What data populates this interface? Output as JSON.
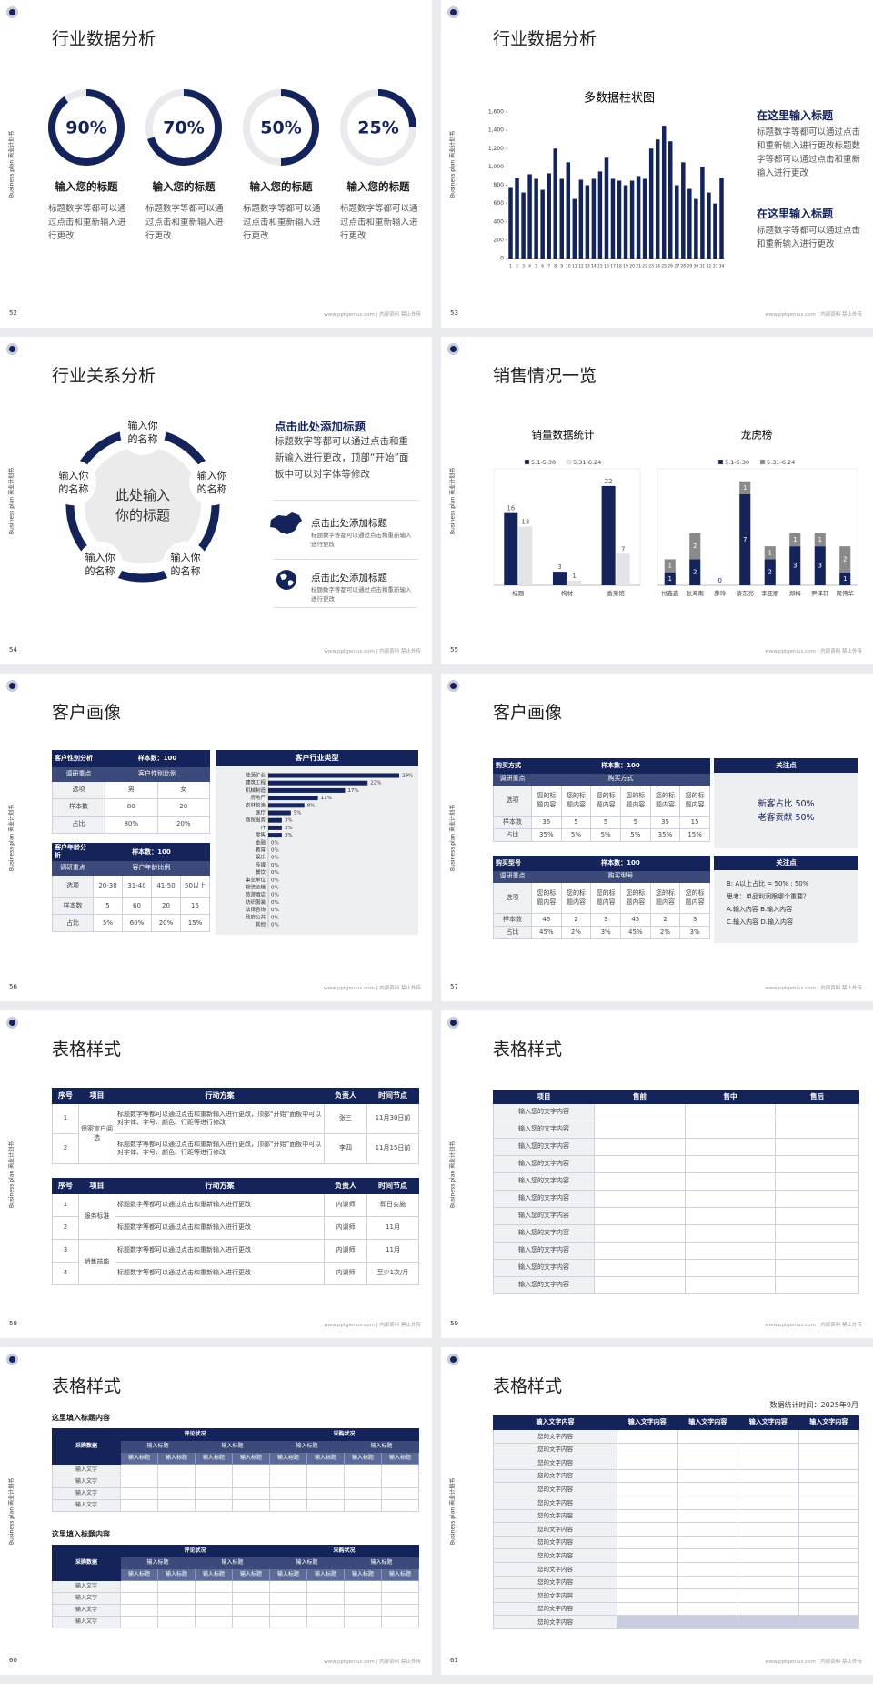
{
  "side_text": "Business plan 商业计划书",
  "footer": "www.pptgenius.com | 内部资料 禁止外传",
  "slides": [
    {
      "page": "52",
      "title": "行业数据分析",
      "rings": [
        {
          "value": 90,
          "value_label": "90%",
          "heading": "输入您的标题",
          "text": "标题数字等都可以通过点击和重新输入进行更改"
        },
        {
          "value": 70,
          "value_label": "70%",
          "heading": "输入您的标题",
          "text": "标题数字等都可以通过点击和重新输入进行更改"
        },
        {
          "value": 50,
          "value_label": "50%",
          "heading": "输入您的标题",
          "text": "标题数字等都可以通过点击和重新输入进行更改"
        },
        {
          "value": 25,
          "value_label": "25%",
          "heading": "输入您的标题",
          "text": "标题数字等都可以通过点击和重新输入进行更改"
        }
      ]
    },
    {
      "page": "53",
      "title": "行业数据分析",
      "chart": {
        "type": "bar",
        "title": "多数据柱状图",
        "categories": [
          "1",
          "2",
          "3",
          "4",
          "5",
          "6",
          "7",
          "8",
          "9",
          "10",
          "11",
          "12",
          "13",
          "14",
          "15",
          "16",
          "17",
          "18",
          "19",
          "20",
          "21",
          "22",
          "23",
          "24",
          "25",
          "26",
          "27",
          "28",
          "29",
          "30",
          "31",
          "32",
          "33",
          "34"
        ],
        "values": [
          780,
          880,
          720,
          920,
          870,
          750,
          930,
          1200,
          870,
          1050,
          650,
          860,
          800,
          870,
          950,
          1100,
          870,
          850,
          800,
          850,
          900,
          870,
          1200,
          1300,
          1450,
          1280,
          800,
          1050,
          760,
          650,
          1000,
          720,
          600,
          880
        ],
        "color": "#14245a",
        "ylim": [
          0,
          1600
        ],
        "yticks": [
          0,
          200,
          400,
          600,
          800,
          {
            "value": 1000,
            "label": "1,000"
          },
          {
            "value": 1200,
            "label": "1,200"
          },
          {
            "value": 1400,
            "label": "1,400"
          },
          {
            "value": 1600,
            "label": "1,600"
          }
        ]
      },
      "notes": [
        {
          "heading": "在这里输入标题",
          "text": "标题数字等都可以通过点击和重新输入进行更改标题数字等都可以通过点击和重新输入进行更改"
        },
        {
          "heading": "在这里输入标题",
          "text": "标题数字等都可以通过点击和重新输入进行更改"
        }
      ]
    },
    {
      "page": "54",
      "title": "行业关系分析",
      "center": "此处输入你的标题",
      "nodes": [
        "输入你的名称",
        "输入你的名称",
        "输入你的名称",
        "输入你的名称",
        "输入你的名称"
      ],
      "heading": "点击此处添加标题",
      "text": "标题数字等都可以通过点击和重新输入进行更改，顶部“开始”面板中可以对字体等修改",
      "items": [
        {
          "heading": "点击此处添加标题",
          "text": "标题数字等都可以通过点击和重新输入进行更改"
        },
        {
          "heading": "点击此处添加标题",
          "text": "标题数字等都可以通过点击和重新输入进行更改"
        }
      ]
    },
    {
      "page": "55",
      "title": "销售情况一览",
      "charts": [
        {
          "type": "bar",
          "title": "销量数据统计",
          "categories": [
            "标题",
            "构材",
            "香菜馆"
          ],
          "series": [
            {
              "name": "5.1-5.30",
              "color": "#14245a",
              "values": [
                16,
                3,
                22
              ]
            },
            {
              "name": "5.31-6.24",
              "color": "#e3e4e8",
              "values": [
                13,
                1,
                7
              ]
            }
          ]
        },
        {
          "type": "stacked_bar",
          "title": "龙虎榜",
          "categories": [
            "付鑫鑫",
            "张海南",
            "薛玲",
            "蔡东亮",
            "李亚丽",
            "郑梅",
            "尹泽轩",
            "周伟华"
          ],
          "series": [
            {
              "name": "5.1-5.30",
              "color": "#14245a",
              "values": [
                1,
                2,
                0,
                7,
                2,
                3,
                3,
                1
              ]
            },
            {
              "name": "5.31-6.24",
              "color": "#8a8a8a",
              "values": [
                1,
                2,
                null,
                1,
                1,
                1,
                1,
                2
              ]
            }
          ]
        }
      ]
    },
    {
      "page": "56",
      "title": "客户画像",
      "tables": [
        {
          "header": [
            "客户性别分析",
            "样本数：100"
          ],
          "subheader": [
            "调研重点",
            "客户性别比例"
          ],
          "rows": [
            [
              "选项",
              "男",
              "女"
            ],
            [
              "样本数",
              "80",
              "20"
            ],
            [
              "占比",
              "80%",
              "20%"
            ]
          ]
        },
        {
          "header": [
            "客户年龄分析",
            "样本数：100"
          ],
          "subheader": [
            "调研重点",
            "客户年龄比例"
          ],
          "rows": [
            [
              "选项",
              "20-30",
              "31-40",
              "41-50",
              "50以上"
            ],
            [
              "样本数",
              "5",
              "60",
              "20",
              "15"
            ],
            [
              "占比",
              "5%",
              "60%",
              "20%",
              "15%"
            ]
          ]
        }
      ],
      "chart": {
        "type": "hbar",
        "title": "客户行业类型",
        "categories": [
          "能源矿业",
          "建筑工程",
          "机械制造",
          "房地产",
          "农林牧渔",
          "医疗",
          "商贸服务",
          "IT",
          "零售",
          "金融",
          "教育",
          "娱乐",
          "传媒",
          "餐饮",
          "事业单位",
          "物流运输",
          "旅游酒店",
          "纺织服装",
          "法律咨询",
          "政府公共",
          "其他"
        ],
        "values": [
          29,
          22,
          17,
          11,
          8,
          5,
          3,
          3,
          3,
          0,
          0,
          0,
          0,
          0,
          0,
          0,
          0,
          0,
          0,
          0,
          0
        ],
        "value_labels": [
          "29%",
          "22%",
          "17%",
          "11%",
          "8%",
          "5%",
          "3%",
          "3%",
          "3%",
          "0%",
          "0%",
          "0%",
          "0%",
          "0%",
          "0%",
          "0%",
          "0%",
          "0%",
          "0%",
          "0%",
          "0%"
        ],
        "color": "#14245a"
      }
    },
    {
      "page": "57",
      "title": "客户画像",
      "tables": [
        {
          "header": [
            "购买方式",
            "样本数：100"
          ],
          "subheader": [
            "调研重点",
            "购买方式"
          ],
          "rows": [
            [
              "选项",
              "您的标题内容",
              "您的标题内容",
              "您的标题内容",
              "您的标题内容",
              "您的标题内容",
              "您的标题内容"
            ],
            [
              "样本数",
              "35",
              "5",
              "5",
              "5",
              "35",
              "15"
            ],
            [
              "占比",
              "35%",
              "5%",
              "5%",
              "5%",
              "35%",
              "15%"
            ]
          ]
        },
        {
          "header": [
            "购买型号",
            "样本数：100"
          ],
          "subheader": [
            "调研重点",
            "购买型号"
          ],
          "rows": [
            [
              "选项",
              "您的标题内容",
              "您的标题内容",
              "您的标题内容",
              "您的标题内容",
              "您的标题内容",
              "您的标题内容"
            ],
            [
              "样本数",
              "45",
              "2",
              "3",
              "45",
              "2",
              "3"
            ],
            [
              "占比",
              "45%",
              "2%",
              "3%",
              "45%",
              "2%",
              "3%"
            ]
          ]
        }
      ],
      "panels": [
        {
          "title": "关注点",
          "lines": [
            "新客占比 50%",
            "老客贡献 50%"
          ]
        },
        {
          "title": "关注点",
          "lines": [
            "B: A以上占比 = 50% : 50%",
            "思考：单品利润跟哪个重要？",
            "A.输入内容  B.输入内容",
            "C.输入内容  D.输入内容"
          ]
        }
      ]
    },
    {
      "page": "58",
      "title": "表格样式",
      "tables": [
        {
          "header": [
            "序号",
            "项目",
            "行动方案",
            "负责人",
            "时间节点"
          ],
          "groups": [
            {
              "item": "保密宣户阅选",
              "rows": [
                [
                  "1",
                  "标题数字等都可以通过点击和重新输入进行更改，顶部“开始”面板中可以对字体、字号、颜色、行距等进行修改",
                  "张三",
                  "11月30日前"
                ],
                [
                  "2",
                  "标题数字等都可以通过点击和重新输入进行更改，顶部“开始”面板中可以对字体、字号、颜色、行距等进行修改",
                  "李四",
                  "11月15日前"
                ]
              ]
            }
          ]
        },
        {
          "header": [
            "序号",
            "项目",
            "行动方案",
            "负责人",
            "时间节点"
          ],
          "groups": [
            {
              "item": "服务标准",
              "rows": [
                [
                  "1",
                  "标题数字等都可以通过点击和重新输入进行更改",
                  "内训师",
                  "即日实施"
                ],
                [
                  "2",
                  "标题数字等都可以通过点击和重新输入进行更改",
                  "内训师",
                  "11月"
                ]
              ]
            },
            {
              "item": "销售技能",
              "rows": [
                [
                  "3",
                  "标题数字等都可以通过点击和重新输入进行更改",
                  "内训师",
                  "11月"
                ],
                [
                  "4",
                  "标题数字等都可以通过点击和重新输入进行更改",
                  "内训师",
                  "至少1次/月"
                ]
              ]
            }
          ]
        }
      ]
    },
    {
      "page": "59",
      "title": "表格样式",
      "table": {
        "header": [
          "项目",
          "售前",
          "售中",
          "售后"
        ],
        "rows": [
          "输入您的文字内容",
          "输入您的文字内容",
          "输入您的文字内容",
          "输入您的文字内容",
          "输入您的文字内容",
          "输入您的文字内容",
          "输入您的文字内容",
          "输入您的文字内容",
          "输入您的文字内容",
          "输入您的文字内容",
          "输入您的文字内容"
        ]
      }
    },
    {
      "page": "60",
      "title": "表格样式",
      "sections": [
        {
          "heading": "这里填入标题内容",
          "corner": "采购数据",
          "groups": [
            "评论状况",
            "采购状况"
          ],
          "subgroups": [
            "输入标题",
            "输入标题",
            "输入标题",
            "输入标题"
          ],
          "columns": [
            "输入标题",
            "输入标题",
            "输入标题",
            "输入标题",
            "输入标题",
            "输入标题",
            "输入标题",
            "输入标题"
          ],
          "rows": [
            "输入文字",
            "输入文字",
            "输入文字",
            "输入文字"
          ]
        },
        {
          "heading": "这里填入标题内容",
          "corner": "采购数据",
          "groups": [
            "评论状况",
            "采购状况"
          ],
          "subgroups": [
            "输入标题",
            "输入标题",
            "输入标题",
            "输入标题"
          ],
          "columns": [
            "输入标题",
            "输入标题",
            "输入标题",
            "输入标题",
            "输入标题",
            "输入标题",
            "输入标题",
            "输入标题"
          ],
          "rows": [
            "输入文字",
            "输入文字",
            "输入文字",
            "输入文字"
          ]
        }
      ]
    },
    {
      "page": "61",
      "title": "表格样式",
      "note": "数据统计时间：2025年9月",
      "table": {
        "header": [
          "输入文字内容",
          "输入文字内容",
          "输入文字内容",
          "输入文字内容",
          "输入文字内容"
        ],
        "rows": [
          "您的文字内容",
          "您的文字内容",
          "您的文字内容",
          "您的文字内容",
          "您的文字内容",
          "您的文字内容",
          "您的文字内容",
          "您的文字内容",
          "您的文字内容",
          "您的文字内容",
          "您的文字内容",
          "您的文字内容",
          "您的文字内容",
          "您的文字内容",
          "您的文字内容"
        ]
      }
    }
  ]
}
